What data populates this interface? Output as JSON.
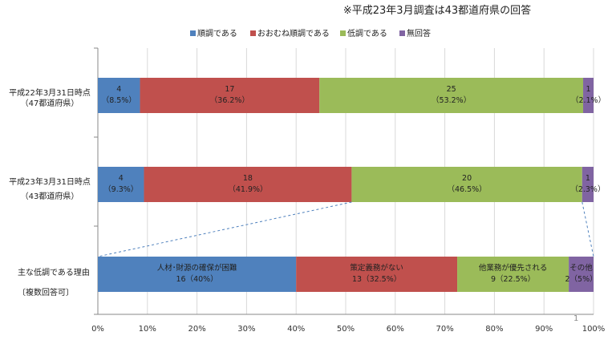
{
  "note": "※平成23年3月調査は43都道府県の回答",
  "page_number": "1",
  "chart_data": {
    "type": "bar",
    "orientation": "horizontal",
    "stacked": true,
    "percent_scale": true,
    "xlim": [
      0,
      100
    ],
    "xticks": [
      "0%",
      "10%",
      "20%",
      "30%",
      "40%",
      "50%",
      "60%",
      "70%",
      "80%",
      "90%",
      "100%"
    ],
    "grid": true,
    "legend_position": "top",
    "series": [
      {
        "name": "順調である",
        "color": "#4f81bd"
      },
      {
        "name": "おおむね順調である",
        "color": "#c0504d"
      },
      {
        "name": "低調である",
        "color": "#9bbb59"
      },
      {
        "name": "無回答",
        "color": "#8064a2"
      }
    ],
    "bars": [
      {
        "label_lines": [
          "平成22年3月31日時点",
          "（47都道府県）"
        ],
        "segments": [
          {
            "series": 0,
            "count": "4",
            "pct": "（8.5%）",
            "value": 8.5
          },
          {
            "series": 1,
            "count": "17",
            "pct": "（36.2%）",
            "value": 36.2
          },
          {
            "series": 2,
            "count": "25",
            "pct": "（53.2%）",
            "value": 53.2
          },
          {
            "series": 3,
            "count": "1",
            "pct": "（2.1%）",
            "value": 2.1
          }
        ]
      },
      {
        "label_lines": [
          "平成23年3月31日時点",
          "（43都道府県）"
        ],
        "segments": [
          {
            "series": 0,
            "count": "4",
            "pct": "（9.3%）",
            "value": 9.3
          },
          {
            "series": 1,
            "count": "18",
            "pct": "（41.9%）",
            "value": 41.9
          },
          {
            "series": 2,
            "count": "20",
            "pct": "（46.5%）",
            "value": 46.5
          },
          {
            "series": 3,
            "count": "1",
            "pct": "（2.3%）",
            "value": 2.3
          }
        ]
      },
      {
        "label_lines": [
          "主な低調である理由",
          "〔複数回答可〕"
        ],
        "segments": [
          {
            "color": "#4f81bd",
            "count": "人材･財源の確保が困難",
            "pct": "16（40%）",
            "value": 40
          },
          {
            "color": "#c0504d",
            "count": "策定義務がない",
            "pct": "13（32.5%）",
            "value": 32.5
          },
          {
            "color": "#9bbb59",
            "count": "他業務が優先される",
            "pct": "9（22.5%）",
            "value": 22.5
          },
          {
            "color": "#8064a2",
            "count": "その他",
            "pct": "2（5%）",
            "value": 5
          }
        ]
      }
    ]
  }
}
